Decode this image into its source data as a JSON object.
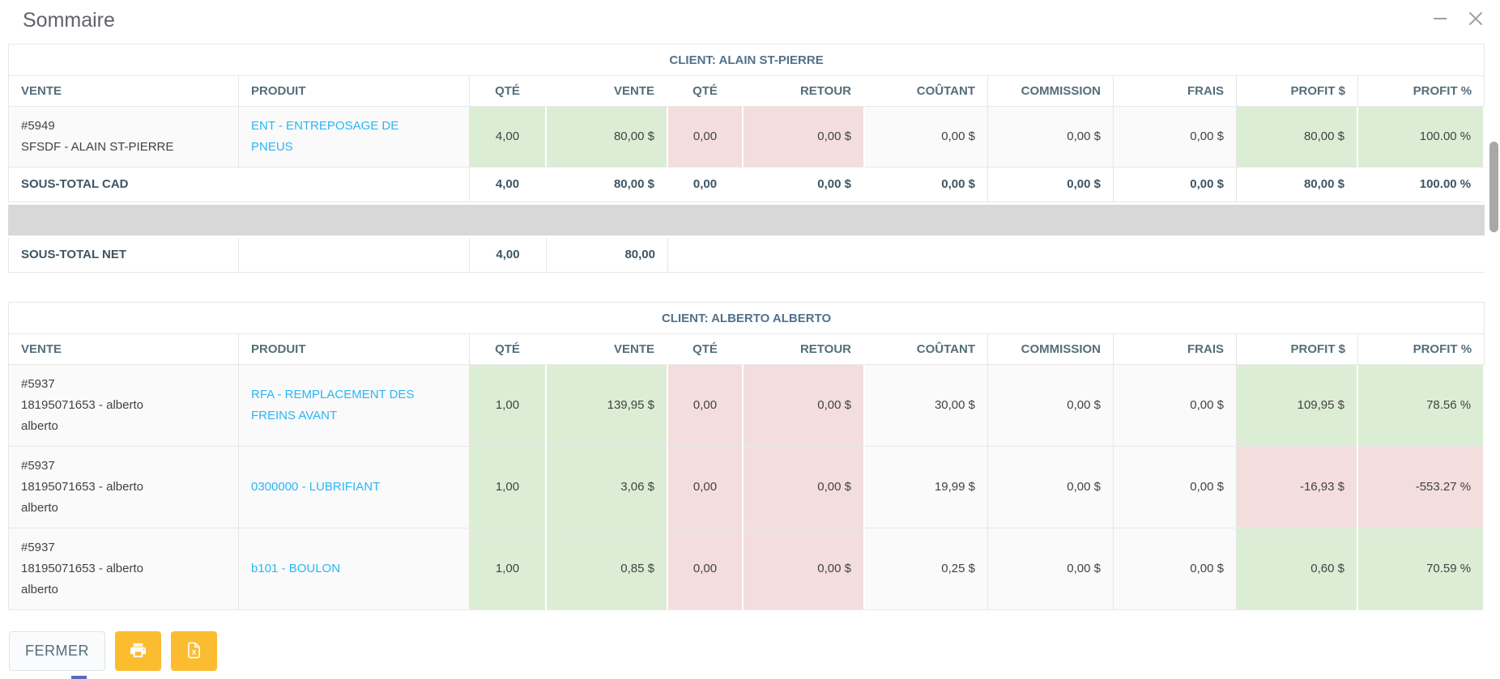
{
  "dialog": {
    "title": "Sommaire"
  },
  "columns": [
    "VENTE",
    "PRODUIT",
    "QTÉ",
    "VENTE",
    "QTÉ",
    "RETOUR",
    "COÛTANT",
    "COMMISSION",
    "FRAIS",
    "PROFIT $",
    "PROFIT %"
  ],
  "clients": [
    {
      "header": "CLIENT: ALAIN ST-PIERRE",
      "rows": [
        {
          "vente": [
            "#5949",
            "SFSDF - ALAIN ST-PIERRE"
          ],
          "produit": "ENT - ENTREPOSAGE DE PNEUS",
          "values": [
            "4,00",
            "80,00 $",
            "0,00",
            "0,00 $",
            "0,00 $",
            "0,00 $",
            "0,00 $",
            "80,00 $",
            "100.00 %"
          ],
          "profit": "positive"
        }
      ],
      "subtotal_cad": {
        "label": "SOUS-TOTAL CAD",
        "values": [
          "4,00",
          "80,00 $",
          "0,00",
          "0,00 $",
          "0,00 $",
          "0,00 $",
          "0,00 $",
          "80,00 $",
          "100.00 %"
        ],
        "profit": "positive"
      },
      "subtotal_net": {
        "label": "SOUS-TOTAL NET",
        "qty": "4,00",
        "amount": "80,00"
      }
    },
    {
      "header": "CLIENT: ALBERTO ALBERTO",
      "rows": [
        {
          "vente": [
            "#5937",
            "18195071653 - alberto",
            "alberto"
          ],
          "produit": "RFA - REMPLACEMENT DES FREINS AVANT",
          "values": [
            "1,00",
            "139,95 $",
            "0,00",
            "0,00 $",
            "30,00 $",
            "0,00 $",
            "0,00 $",
            "109,95 $",
            "78.56 %"
          ],
          "profit": "positive"
        },
        {
          "vente": [
            "#5937",
            "18195071653 - alberto",
            "alberto"
          ],
          "produit": "0300000 - LUBRIFIANT",
          "values": [
            "1,00",
            "3,06 $",
            "0,00",
            "0,00 $",
            "19,99 $",
            "0,00 $",
            "0,00 $",
            "-16,93 $",
            "-553.27 %"
          ],
          "profit": "negative"
        },
        {
          "vente": [
            "#5937",
            "18195071653 - alberto",
            "alberto"
          ],
          "produit": "b101 - BOULON",
          "values": [
            "1,00",
            "0,85 $",
            "0,00",
            "0,00 $",
            "0,25 $",
            "0,00 $",
            "0,00 $",
            "0,60 $",
            "70.59 %"
          ],
          "profit": "positive"
        }
      ]
    }
  ],
  "footer": {
    "close_label": "FERMER"
  },
  "icons": {
    "print": "printer-icon",
    "excel": "excel-file-icon",
    "minimize": "minimize-icon",
    "close": "close-icon"
  },
  "colors": {
    "positive_bg": "#dcedd5",
    "negative_bg": "#f3dedd",
    "divider_gray": "#d8d8d8",
    "link": "#29b6f6",
    "header_text": "#546e7a",
    "accent": "#fbbc30"
  }
}
